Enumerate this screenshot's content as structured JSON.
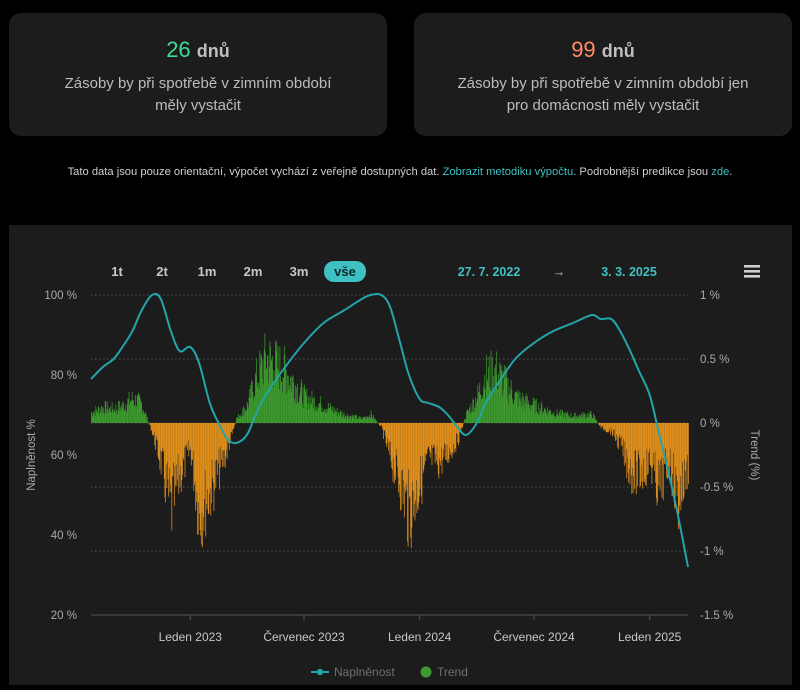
{
  "cards": [
    {
      "value": "26",
      "unit": "dnů",
      "value_color": "#3ddc97",
      "description_line1": "Zásoby by při spotřebě v zimním období",
      "description_line2": "měly vystačit"
    },
    {
      "value": "99",
      "unit": "dnů",
      "value_color": "#ff8c66",
      "description_line1": "Zásoby by při spotřebě v zimním období jen",
      "description_line2": "pro domácnosti měly vystačit"
    }
  ],
  "note": {
    "text_before": "Tato data jsou pouze orientační, výpočet vychází z veřejně dostupných dat.",
    "link1": "Zobrazit metodiku výpočtu",
    "text_middle": ". Podrobnější predikce jsou",
    "link2": "zde",
    "text_after": "."
  },
  "toolbar": {
    "ranges": [
      "1t",
      "2t",
      "1m",
      "2m",
      "3m",
      "vše"
    ],
    "selected_range": "vše",
    "date_from": "27. 7. 2022",
    "arrow": "→",
    "date_to": "3. 3. 2025",
    "menu_icon": "hamburger-menu-icon"
  },
  "colors": {
    "line": "#23a4a8",
    "trend_positive": "#3c9a2e",
    "trend_negative": "#e0901c",
    "accent": "#3fc0c3"
  },
  "chart_data": {
    "type": "line",
    "x_ticks": [
      "Leden 2023",
      "Červenec 2023",
      "Leden 2024",
      "Červenec 2024",
      "Leden 2025"
    ],
    "y_left_ticks": [
      "100 %",
      "80 %",
      "60 %",
      "40 %",
      "20 %"
    ],
    "y_right_ticks": [
      "1 %",
      "0.5 %",
      "0 %",
      "-0.5 %",
      "-1 %",
      "-1.5 %"
    ],
    "ylabel_left": "Naplněnost %",
    "ylabel_right": "Trend (%)",
    "ylim_left": [
      20,
      100
    ],
    "ylim_right": [
      -1.5,
      1
    ],
    "legend": [
      "Naplněnost",
      "Trend"
    ],
    "legend_position": "bottom",
    "series": [
      {
        "name": "Naplněnost",
        "axis": "left",
        "x": [
          "2022-07-27",
          "2022-08-15",
          "2022-09-01",
          "2022-09-15",
          "2022-10-01",
          "2022-10-15",
          "2022-11-01",
          "2022-11-15",
          "2022-12-01",
          "2022-12-15",
          "2023-01-01",
          "2023-01-15",
          "2023-02-01",
          "2023-02-15",
          "2023-03-01",
          "2023-03-15",
          "2023-04-01",
          "2023-04-15",
          "2023-05-01",
          "2023-06-01",
          "2023-07-01",
          "2023-08-01",
          "2023-09-01",
          "2023-10-01",
          "2023-10-15",
          "2023-11-01",
          "2023-11-15",
          "2023-12-01",
          "2023-12-15",
          "2024-01-01",
          "2024-01-15",
          "2024-02-01",
          "2024-02-15",
          "2024-03-01",
          "2024-03-15",
          "2024-04-01",
          "2024-04-15",
          "2024-05-01",
          "2024-06-01",
          "2024-07-01",
          "2024-08-01",
          "2024-09-01",
          "2024-10-01",
          "2024-10-15",
          "2024-11-01",
          "2024-11-15",
          "2024-12-01",
          "2024-12-15",
          "2025-01-01",
          "2025-01-15",
          "2025-02-01",
          "2025-02-15",
          "2025-03-03"
        ],
        "values": [
          79,
          82,
          84,
          87,
          91,
          96,
          100,
          99,
          91,
          86,
          87,
          83,
          73,
          68,
          64,
          63,
          65,
          70,
          75,
          82,
          88,
          93,
          96,
          99,
          100,
          100,
          97,
          88,
          80,
          74,
          73,
          72,
          70,
          67,
          65,
          68,
          73,
          77,
          84,
          88,
          91,
          93,
          95,
          94,
          94,
          91,
          86,
          81,
          75,
          66,
          55,
          45,
          32
        ]
      },
      {
        "name": "Trend",
        "axis": "right",
        "type": "bar",
        "note": "approximate envelope of daily trend bars",
        "x": [
          "2022-07-27",
          "2022-08-15",
          "2022-09-01",
          "2022-09-15",
          "2022-10-01",
          "2022-10-15",
          "2022-11-01",
          "2022-11-15",
          "2022-12-01",
          "2022-12-15",
          "2023-01-01",
          "2023-01-15",
          "2023-02-01",
          "2023-02-15",
          "2023-03-01",
          "2023-03-15",
          "2023-04-01",
          "2023-04-15",
          "2023-05-01",
          "2023-06-01",
          "2023-07-01",
          "2023-08-01",
          "2023-09-01",
          "2023-10-01",
          "2023-10-15",
          "2023-11-01",
          "2023-11-15",
          "2023-12-01",
          "2023-12-15",
          "2024-01-01",
          "2024-01-15",
          "2024-02-01",
          "2024-02-15",
          "2024-03-01",
          "2024-03-15",
          "2024-04-01",
          "2024-04-15",
          "2024-05-01",
          "2024-06-01",
          "2024-07-01",
          "2024-08-01",
          "2024-09-01",
          "2024-10-01",
          "2024-10-15",
          "2024-11-01",
          "2024-11-15",
          "2024-12-01",
          "2024-12-15",
          "2025-01-01",
          "2025-01-15",
          "2025-02-01",
          "2025-02-15",
          "2025-03-03"
        ],
        "values": [
          0.12,
          0.18,
          0.16,
          0.2,
          0.28,
          0.22,
          -0.1,
          -0.45,
          -1.0,
          -0.6,
          -0.3,
          -1.05,
          -0.8,
          -0.55,
          -0.3,
          0.05,
          0.2,
          0.5,
          0.75,
          0.6,
          0.3,
          0.2,
          0.1,
          0.05,
          0.1,
          -0.05,
          -0.4,
          -0.7,
          -1.05,
          -0.7,
          -0.4,
          -0.45,
          -0.35,
          -0.2,
          0.1,
          0.3,
          0.55,
          0.6,
          0.3,
          0.2,
          0.12,
          0.08,
          0.1,
          -0.05,
          -0.1,
          -0.25,
          -0.55,
          -0.6,
          -0.45,
          -0.75,
          -0.45,
          -0.9,
          -0.5
        ]
      }
    ]
  }
}
